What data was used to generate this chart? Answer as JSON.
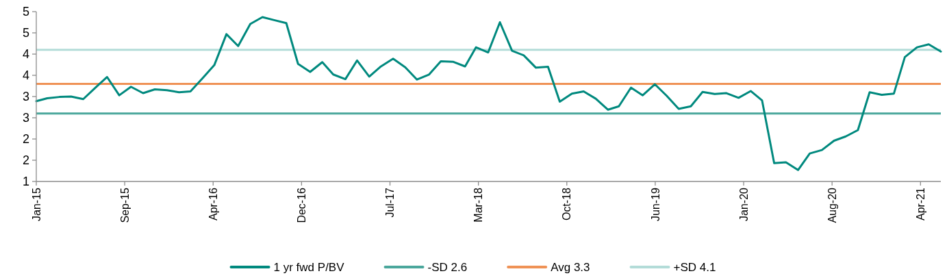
{
  "chart_data": {
    "type": "line",
    "x": [
      "2015-01-31",
      "2015-02-28",
      "2015-03-31",
      "2015-04-30",
      "2015-05-31",
      "2015-06-30",
      "2015-07-31",
      "2015-08-31",
      "2015-09-30",
      "2015-10-31",
      "2015-11-30",
      "2015-12-31",
      "2016-01-31",
      "2016-02-29",
      "2016-03-31",
      "2016-04-30",
      "2016-05-31",
      "2016-06-30",
      "2016-07-31",
      "2016-08-31",
      "2016-09-30",
      "2016-10-31",
      "2016-11-30",
      "2016-12-31",
      "2017-01-31",
      "2017-02-28",
      "2017-03-31",
      "2017-04-30",
      "2017-05-31",
      "2017-06-30",
      "2017-07-31",
      "2017-08-31",
      "2017-09-30",
      "2017-10-31",
      "2017-11-30",
      "2017-12-31",
      "2018-01-31",
      "2018-02-28",
      "2018-03-31",
      "2018-04-30",
      "2018-05-31",
      "2018-06-30",
      "2018-07-31",
      "2018-08-31",
      "2018-09-30",
      "2018-10-31",
      "2018-11-30",
      "2018-12-31",
      "2019-01-31",
      "2019-02-28",
      "2019-03-31",
      "2019-04-30",
      "2019-05-31",
      "2019-06-30",
      "2019-07-31",
      "2019-08-31",
      "2019-09-30",
      "2019-10-31",
      "2019-11-30",
      "2019-12-31",
      "2020-01-31",
      "2020-02-29",
      "2020-03-31",
      "2020-04-30",
      "2020-05-31",
      "2020-06-30",
      "2020-07-31",
      "2020-08-31",
      "2020-09-30",
      "2020-10-31",
      "2020-11-30",
      "2020-12-31",
      "2021-01-31",
      "2021-02-28",
      "2021-03-31",
      "2021-04-30",
      "2021-05-31"
    ],
    "series": [
      {
        "name": "1 yr fwd P/BV",
        "color": "#00897e",
        "values": [
          2.89,
          2.96,
          2.99,
          3.0,
          2.94,
          3.2,
          3.46,
          3.03,
          3.23,
          3.08,
          3.17,
          3.15,
          3.1,
          3.12,
          3.43,
          3.74,
          4.47,
          4.19,
          4.71,
          4.87,
          4.8,
          4.73,
          3.77,
          3.58,
          3.81,
          3.52,
          3.41,
          3.85,
          3.47,
          3.71,
          3.89,
          3.69,
          3.4,
          3.52,
          3.83,
          3.82,
          3.71,
          4.16,
          4.04,
          4.75,
          4.08,
          3.97,
          3.68,
          3.7,
          2.88,
          3.07,
          3.12,
          2.95,
          2.69,
          2.77,
          3.21,
          3.03,
          3.29,
          3.02,
          2.71,
          2.77,
          3.11,
          3.06,
          3.08,
          2.97,
          3.13,
          2.91,
          1.43,
          1.45,
          1.27,
          1.66,
          1.74,
          1.96,
          2.06,
          2.21,
          3.1,
          3.04,
          3.07,
          3.93,
          4.16,
          4.23,
          4.06
        ]
      }
    ],
    "ref_lines": [
      {
        "axis": "y",
        "value": 2.6,
        "label": "-SD 2.6",
        "color": "#4ba79c"
      },
      {
        "axis": "y",
        "value": 3.3,
        "label": "Avg 3.3",
        "color": "#ef9256"
      },
      {
        "axis": "y",
        "value": 4.1,
        "label": "+SD 4.1",
        "color": "#b3dcd8"
      }
    ],
    "xlim": [
      "2015-01-31",
      "2021-05-31"
    ],
    "xticks": [
      {
        "value": "2015-01-31",
        "label": "Jan-15"
      },
      {
        "value": "2015-09-14",
        "label": "Sep-15"
      },
      {
        "value": "2016-04-27",
        "label": "Apr-16"
      },
      {
        "value": "2016-12-09",
        "label": "Dec-16"
      },
      {
        "value": "2017-07-23",
        "label": "Jul-17"
      },
      {
        "value": "2018-03-06",
        "label": "Mar-18"
      },
      {
        "value": "2018-10-18",
        "label": "Oct-18"
      },
      {
        "value": "2019-06-01",
        "label": "Jun-19"
      },
      {
        "value": "2020-01-13",
        "label": "Jan-20"
      },
      {
        "value": "2020-08-26",
        "label": "Aug-20"
      },
      {
        "value": "2021-04-09",
        "label": "Apr-21"
      }
    ],
    "ylim": [
      1,
      5
    ],
    "yticks": [
      1,
      {
        "value": 1.5,
        "label": "2"
      },
      2,
      {
        "value": 2.5,
        "label": "3"
      },
      3,
      {
        "value": 3.5,
        "label": "4"
      },
      4,
      {
        "value": 4.5,
        "label": "5"
      },
      5
    ],
    "legend": "bottom"
  }
}
